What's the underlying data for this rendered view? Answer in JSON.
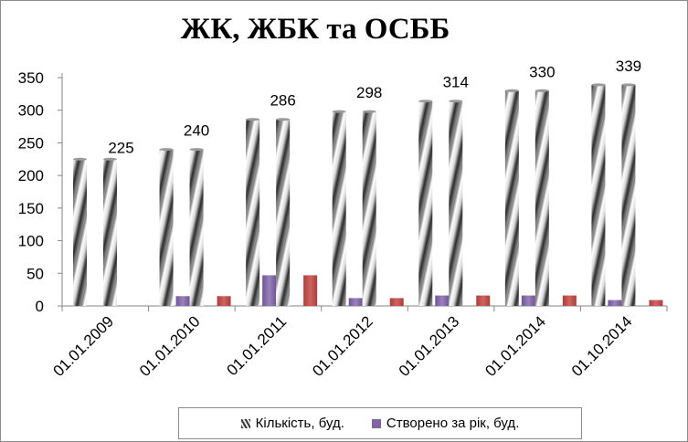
{
  "chart_data": {
    "type": "bar",
    "title": "ЖК, ЖБК та ОСББ",
    "xlabel": "",
    "ylabel": "",
    "ylim": [
      0,
      350
    ],
    "yticks": [
      0,
      50,
      100,
      150,
      200,
      250,
      300,
      350
    ],
    "categories": [
      "01.01.2009",
      "01.01.2010",
      "01.01.2011",
      "01.01.2012",
      "01.01.2013",
      "01.01.2014",
      "01.10.2014"
    ],
    "series": [
      {
        "name": "Кількість, буд.",
        "values": [
          225,
          240,
          286,
          298,
          314,
          330,
          339
        ],
        "color": "#b8b8b8",
        "data_labels": true
      },
      {
        "name": "Створено за рік, буд.",
        "values": [
          null,
          15,
          47,
          12,
          16,
          16,
          9
        ],
        "color": "#8064a2"
      }
    ],
    "extra_bars": [
      {
        "values": [
          225,
          240,
          286,
          298,
          314,
          330,
          339
        ],
        "color": "#b8b8b8"
      },
      {
        "values": [
          null,
          15,
          47,
          12,
          16,
          16,
          9
        ],
        "color": "#c0504d"
      }
    ],
    "grid": false,
    "legend_position": "bottom"
  }
}
